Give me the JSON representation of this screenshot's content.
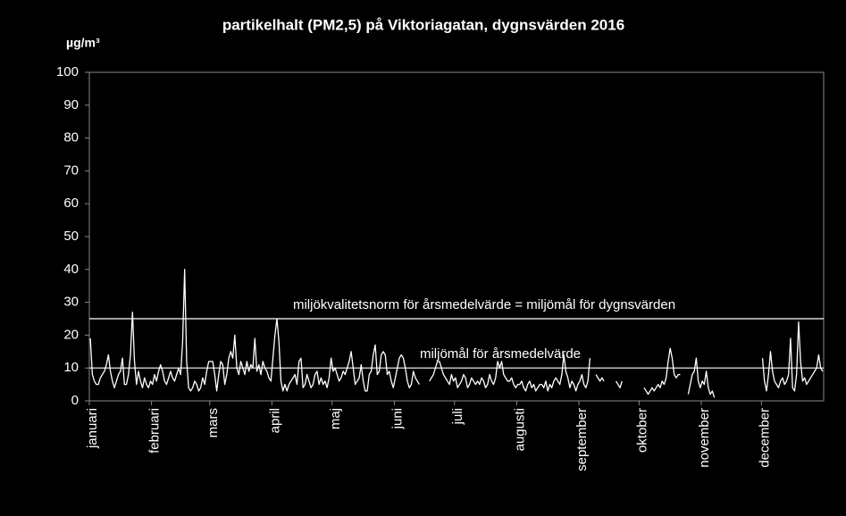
{
  "chart_data": {
    "type": "line",
    "title": "partikelhalt (PM2,5) på Viktoriagatan, dygnsvärden 2016",
    "y_label": "µg/m³",
    "categories": [
      "januari",
      null,
      null,
      null,
      null,
      null,
      null,
      null,
      null,
      null,
      null,
      null,
      null,
      null,
      null,
      null,
      null,
      null,
      null,
      null,
      null,
      null,
      null,
      null,
      null,
      null,
      null,
      null,
      null,
      null,
      null,
      "februari",
      null,
      null,
      null,
      null,
      null,
      null,
      null,
      null,
      null,
      null,
      null,
      null,
      null,
      null,
      null,
      null,
      null,
      null,
      null,
      null,
      null,
      null,
      null,
      null,
      null,
      null,
      null,
      null,
      "mars",
      null,
      null,
      null,
      null,
      null,
      null,
      null,
      null,
      null,
      null,
      null,
      null,
      null,
      null,
      null,
      null,
      null,
      null,
      null,
      null,
      null,
      null,
      null,
      null,
      null,
      null,
      null,
      null,
      null,
      null,
      "april",
      null,
      null,
      null,
      null,
      null,
      null,
      null,
      null,
      null,
      null,
      null,
      null,
      null,
      null,
      null,
      null,
      null,
      null,
      null,
      null,
      null,
      null,
      null,
      null,
      null,
      null,
      null,
      null,
      null,
      "maj",
      null,
      null,
      null,
      null,
      null,
      null,
      null,
      null,
      null,
      null,
      null,
      null,
      null,
      null,
      null,
      null,
      null,
      null,
      null,
      null,
      null,
      null,
      null,
      null,
      null,
      null,
      null,
      null,
      null,
      null,
      "juni",
      null,
      null,
      null,
      null,
      null,
      null,
      null,
      null,
      null,
      null,
      null,
      null,
      null,
      null,
      null,
      null,
      null,
      null,
      null,
      null,
      null,
      null,
      null,
      null,
      null,
      null,
      null,
      null,
      null,
      "juli",
      null,
      null,
      null,
      null,
      null,
      null,
      null,
      null,
      null,
      null,
      null,
      null,
      null,
      null,
      null,
      null,
      null,
      null,
      null,
      null,
      null,
      null,
      null,
      null,
      null,
      null,
      null,
      null,
      null,
      null,
      "augusti",
      null,
      null,
      null,
      null,
      null,
      null,
      null,
      null,
      null,
      null,
      null,
      null,
      null,
      null,
      null,
      null,
      null,
      null,
      null,
      null,
      null,
      null,
      null,
      null,
      null,
      null,
      null,
      null,
      null,
      null,
      "september",
      null,
      null,
      null,
      null,
      null,
      null,
      null,
      null,
      null,
      null,
      null,
      null,
      null,
      null,
      null,
      null,
      null,
      null,
      null,
      null,
      null,
      null,
      null,
      null,
      null,
      null,
      null,
      null,
      null,
      "oktober",
      null,
      null,
      null,
      null,
      null,
      null,
      null,
      null,
      null,
      null,
      null,
      null,
      null,
      null,
      null,
      null,
      null,
      null,
      null,
      null,
      null,
      null,
      null,
      null,
      null,
      null,
      null,
      null,
      null,
      null,
      "november",
      null,
      null,
      null,
      null,
      null,
      null,
      null,
      null,
      null,
      null,
      null,
      null,
      null,
      null,
      null,
      null,
      null,
      null,
      null,
      null,
      null,
      null,
      null,
      null,
      null,
      null,
      null,
      null,
      null,
      "december",
      null,
      null,
      null,
      null,
      null,
      null,
      null,
      null,
      null,
      null,
      null,
      null,
      null,
      null,
      null,
      null,
      null,
      null,
      null,
      null,
      null,
      null,
      null,
      null,
      null,
      null,
      null,
      null,
      null,
      null
    ],
    "series": [
      {
        "name": "PM2,5",
        "color": "#ffffff",
        "values": [
          19,
          8,
          6,
          5,
          5,
          7,
          8,
          9,
          11,
          14,
          9,
          6,
          4,
          6,
          8,
          9,
          13,
          5,
          5,
          8,
          14,
          27,
          12,
          5,
          9,
          6,
          4,
          7,
          5,
          4,
          6,
          5,
          8,
          6,
          9,
          11,
          9,
          6,
          5,
          7,
          9,
          7,
          6,
          8,
          10,
          8,
          18,
          40,
          12,
          4,
          3,
          4,
          6,
          5,
          3,
          4,
          7,
          5,
          9,
          12,
          12,
          12,
          8,
          3,
          8,
          12,
          11,
          5,
          8,
          13,
          15,
          13,
          20,
          10,
          8,
          12,
          10,
          8,
          12,
          9,
          11,
          10,
          19,
          9,
          11,
          8,
          12,
          10,
          9,
          7,
          6,
          13,
          20,
          25,
          18,
          6,
          3,
          5,
          3,
          5,
          6,
          7,
          8,
          5,
          12,
          13,
          4,
          5,
          8,
          6,
          4,
          5,
          8,
          9,
          5,
          7,
          5,
          6,
          4,
          7,
          13,
          9,
          10,
          8,
          6,
          7,
          9,
          8,
          10,
          12,
          15,
          10,
          5,
          6,
          7,
          11,
          6,
          3,
          3,
          8,
          9,
          14,
          17,
          8,
          9,
          14,
          15,
          14,
          8,
          9,
          6,
          4,
          7,
          10,
          13,
          14,
          13,
          10,
          6,
          4,
          5,
          9,
          7,
          6,
          5,
          null,
          null,
          null,
          null,
          6,
          7,
          8,
          10,
          12,
          12,
          10,
          8,
          7,
          6,
          5,
          8,
          6,
          7,
          4,
          5,
          6,
          8,
          7,
          4,
          5,
          7,
          6,
          5,
          6,
          5,
          7,
          6,
          4,
          5,
          8,
          6,
          5,
          7,
          12,
          10,
          12,
          8,
          7,
          6,
          6,
          7,
          5,
          4,
          5,
          5,
          6,
          4,
          3,
          5,
          6,
          4,
          5,
          3,
          4,
          5,
          5,
          4,
          6,
          3,
          5,
          4,
          6,
          7,
          6,
          5,
          8,
          14,
          9,
          7,
          4,
          6,
          5,
          3,
          5,
          6,
          8,
          5,
          4,
          6,
          13,
          null,
          null,
          8,
          7,
          6,
          7,
          6,
          null,
          null,
          null,
          null,
          null,
          6,
          5,
          4,
          6,
          null,
          null,
          null,
          null,
          null,
          null,
          null,
          null,
          null,
          null,
          4,
          3,
          2,
          3,
          4,
          3,
          4,
          5,
          4,
          6,
          5,
          7,
          12,
          16,
          13,
          8,
          7,
          8,
          8,
          null,
          null,
          null,
          2,
          5,
          8,
          9,
          13,
          6,
          4,
          6,
          5,
          9,
          4,
          2,
          3,
          1,
          null,
          null,
          null,
          null,
          null,
          null,
          null,
          null,
          null,
          null,
          null,
          null,
          null,
          null,
          null,
          null,
          null,
          null,
          null,
          null,
          null,
          null,
          null,
          13,
          6,
          3,
          8,
          15,
          9,
          6,
          5,
          4,
          6,
          7,
          5,
          6,
          8,
          19,
          4,
          3,
          8,
          24,
          12,
          6,
          7,
          5,
          6,
          7,
          8,
          9,
          10,
          14,
          10,
          9
        ]
      }
    ],
    "reference_lines": [
      {
        "value": 25,
        "label": "miljökvalitetsnorm för årsmedelvärde = miljömål för dygnsvärden"
      },
      {
        "value": 10,
        "label": "miljömål för årsmedelvärde"
      }
    ],
    "ylim": [
      0,
      100
    ],
    "yticks": [
      0,
      10,
      20,
      30,
      40,
      50,
      60,
      70,
      80,
      90,
      100
    ],
    "grid": false
  }
}
